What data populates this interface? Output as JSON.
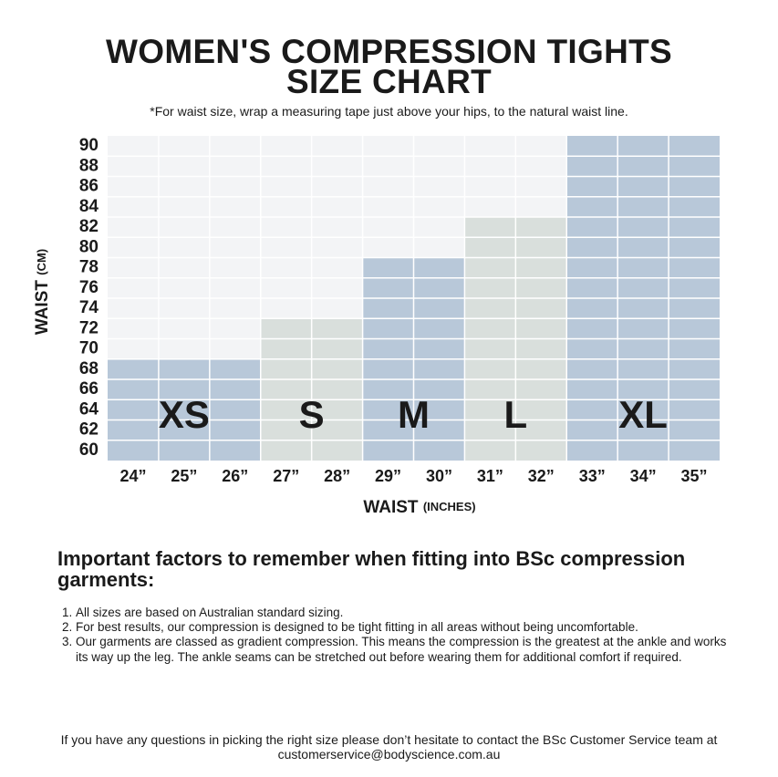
{
  "title": [
    "WOMEN'S COMPRESSION TIGHTS",
    "SIZE CHART"
  ],
  "note": "*For waist size, wrap a measuring tape just above your hips, to the natural waist line.",
  "chart_data": {
    "type": "size-bands",
    "ylabel": "WAIST",
    "ylabel_unit": "(CM)",
    "xlabel": "WAIST",
    "xlabel_unit": "(INCHES)",
    "yticks": [
      60,
      62,
      64,
      66,
      68,
      70,
      72,
      74,
      76,
      78,
      80,
      82,
      84,
      86,
      88,
      90
    ],
    "background": "#f3f4f6",
    "series": [
      {
        "name": "XS",
        "color": "#b8c8d9",
        "categories": [
          "24”",
          "25”",
          "26”"
        ],
        "value": 68
      },
      {
        "name": "S",
        "color": "#d9dfdc",
        "categories": [
          "27”",
          "28”"
        ],
        "value": 72
      },
      {
        "name": "M",
        "color": "#b8c8d9",
        "categories": [
          "29”",
          "30”"
        ],
        "value": 78
      },
      {
        "name": "L",
        "color": "#d9dfdc",
        "categories": [
          "31”",
          "32”"
        ],
        "value": 82
      },
      {
        "name": "XL",
        "color": "#b8c8d9",
        "categories": [
          "33”",
          "34”",
          "35”"
        ],
        "value": 90
      }
    ]
  },
  "factors": {
    "heading": "Important factors to remember when fitting into BSc compression garments:",
    "items": [
      "All sizes are based on Australian standard sizing.",
      "For best results, our compression is designed to be tight fitting in all areas without being uncomfortable.",
      "Our garments are classed as gradient compression. This means the compression is the greatest at the ankle and works its way up the leg. The ankle seams can be stretched out before wearing them for additional comfort if required."
    ]
  },
  "footer": [
    "If you have any questions in picking the right size please don’t hesitate to contact the BSc Customer Service team at",
    "customerservice@bodyscience.com.au"
  ]
}
